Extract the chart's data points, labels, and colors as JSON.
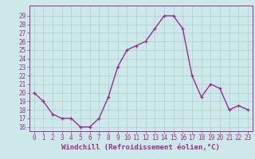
{
  "x": [
    0,
    1,
    2,
    3,
    4,
    5,
    6,
    7,
    8,
    9,
    10,
    11,
    12,
    13,
    14,
    15,
    16,
    17,
    18,
    19,
    20,
    21,
    22,
    23
  ],
  "y": [
    20,
    19,
    17.5,
    17,
    17,
    16,
    16,
    17,
    19.5,
    23,
    25,
    25.5,
    26,
    27.5,
    29,
    29,
    27.5,
    22,
    19.5,
    21,
    20.5,
    18,
    18.5,
    18
  ],
  "line_color": "#9b2d8e",
  "marker": "+",
  "marker_size": 3.5,
  "bg_color": "#cce8e8",
  "grid_color": "#aacfcf",
  "axis_color": "#9b2d8e",
  "xlabel": "Windchill (Refroidissement éolien,°C)",
  "xlabel_fontsize": 6.5,
  "ylabel_ticks": [
    16,
    17,
    18,
    19,
    20,
    21,
    22,
    23,
    24,
    25,
    26,
    27,
    28,
    29
  ],
  "xtick_labels": [
    "0",
    "1",
    "2",
    "3",
    "4",
    "5",
    "6",
    "7",
    "8",
    "9",
    "10",
    "11",
    "12",
    "13",
    "14",
    "15",
    "16",
    "17",
    "18",
    "19",
    "20",
    "21",
    "22",
    "23"
  ],
  "xlim": [
    -0.5,
    23.5
  ],
  "ylim": [
    15.5,
    30.2
  ],
  "tick_fontsize": 5.5,
  "line_width": 1.0
}
